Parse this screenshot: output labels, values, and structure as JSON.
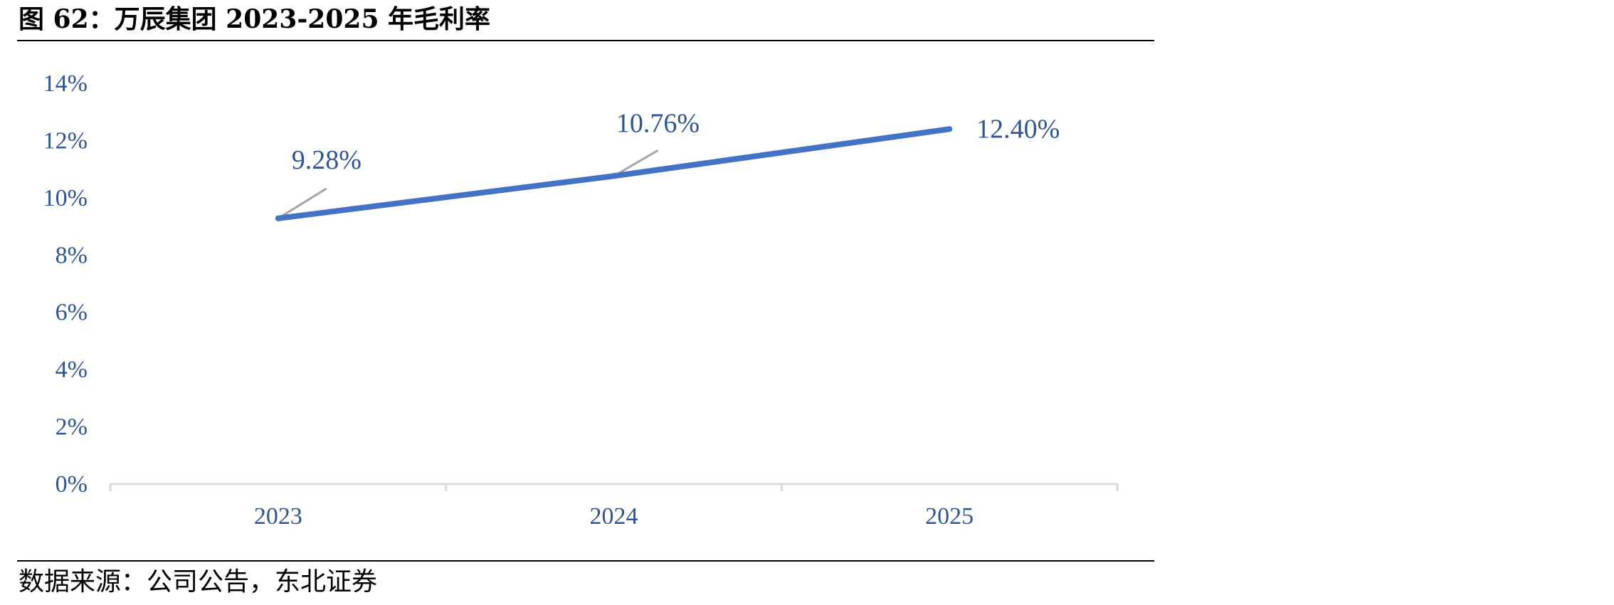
{
  "figure": {
    "title": "图  62：万辰集团 2023-2025 年毛利率",
    "source": "数据来源：公司公告，东北证券"
  },
  "colors": {
    "line": "#4472C4",
    "axis_text": "#2F5597",
    "axis_line": "#D9D9D9",
    "leader_line": "#A6A6A6"
  },
  "chart_data": {
    "type": "line",
    "title": "",
    "xlabel": "",
    "ylabel": "",
    "categories": [
      "2023",
      "2024",
      "2025"
    ],
    "series": [
      {
        "name": "",
        "values": [
          9.28,
          10.76,
          12.4
        ]
      }
    ],
    "data_labels": [
      "9.28%",
      "10.76%",
      "12.40%"
    ],
    "ylim": [
      0,
      14
    ],
    "y_ticks": [
      0,
      2,
      4,
      6,
      8,
      10,
      12,
      14
    ],
    "y_tick_labels": [
      "0%",
      "2%",
      "4%",
      "6%",
      "8%",
      "10%",
      "12%",
      "14%"
    ],
    "grid": false,
    "legend": "none"
  }
}
